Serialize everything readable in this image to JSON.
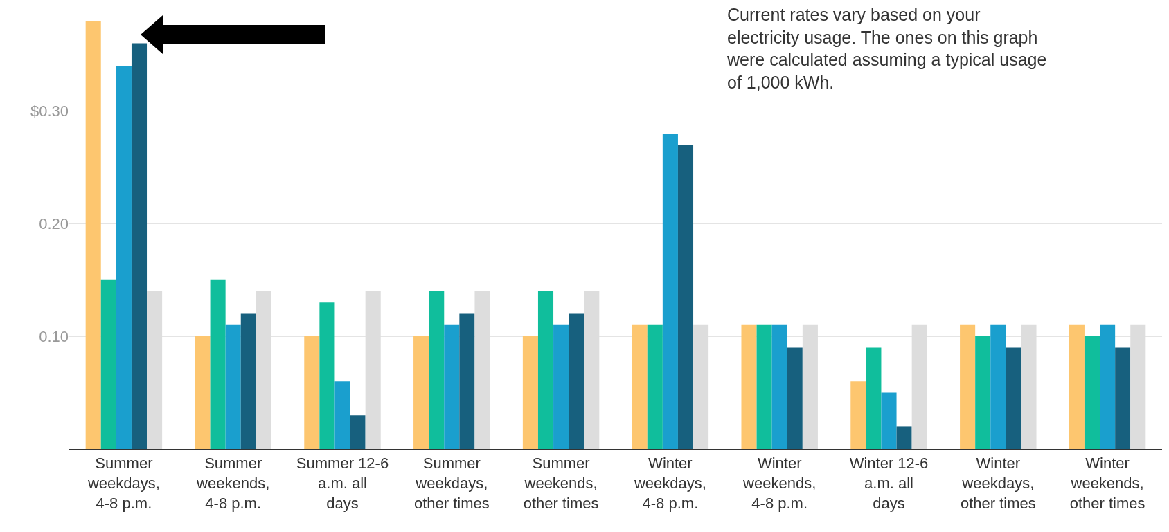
{
  "chart_data": {
    "type": "bar",
    "categories": [
      "Summer weekdays, 4-8 p.m.",
      "Summer weekends, 4-8 p.m.",
      "Summer 12-6 a.m. all days",
      "Summer weekdays, other times",
      "Summer weekends, other times",
      "Winter weekdays, 4-8 p.m.",
      "Winter weekends, 4-8 p.m.",
      "Winter 12-6 a.m. all days",
      "Winter weekdays, other times",
      "Winter weekends, other times"
    ],
    "series": [
      {
        "color": "#fdc66f",
        "values": [
          0.38,
          0.1,
          0.1,
          0.1,
          0.1,
          0.11,
          0.11,
          0.06,
          0.11,
          0.11
        ]
      },
      {
        "color": "#10be9c",
        "values": [
          0.15,
          0.15,
          0.13,
          0.14,
          0.14,
          0.11,
          0.11,
          0.09,
          0.1,
          0.1
        ]
      },
      {
        "color": "#1a9fce",
        "values": [
          0.34,
          0.11,
          0.06,
          0.11,
          0.11,
          0.28,
          0.11,
          0.05,
          0.11,
          0.11
        ]
      },
      {
        "color": "#17607e",
        "values": [
          0.36,
          0.12,
          0.03,
          0.12,
          0.12,
          0.27,
          0.09,
          0.02,
          0.09,
          0.09
        ]
      },
      {
        "color": "#dddddd",
        "values": [
          0.14,
          0.14,
          0.14,
          0.14,
          0.14,
          0.11,
          0.11,
          0.11,
          0.11,
          0.11
        ]
      }
    ],
    "ylim": [
      0,
      0.38
    ],
    "yticks": [
      {
        "value": 0.1,
        "label": "0.10"
      },
      {
        "value": 0.2,
        "label": "0.20"
      },
      {
        "value": 0.3,
        "label": "$0.30"
      }
    ],
    "grid": "y",
    "annotations": [
      "Current rates vary based on your electricity usage. The ones on this graph were calculated assuming a typical usage of 1,000 kWh."
    ]
  }
}
